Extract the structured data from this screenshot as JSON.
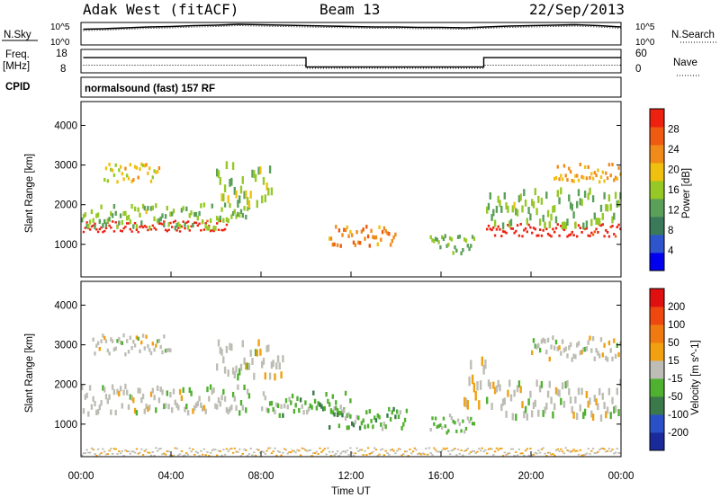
{
  "header": {
    "station": "Adak West (fitACF)",
    "beam": "Beam 13",
    "date": "22/Sep/2013"
  },
  "noise_panel": {
    "left_label": "N.Sky",
    "right_label": "N.Search",
    "left_ticks": [
      "10^5",
      "10^0"
    ],
    "right_ticks": [
      "10^5",
      "10^0"
    ]
  },
  "freq_panel": {
    "left_label_top": "Freq.",
    "left_label_unit": "[MHz]",
    "left_ticks": [
      "18",
      "8"
    ],
    "right_label": "Nave",
    "right_ticks": [
      "60",
      "0"
    ]
  },
  "cpid": {
    "label": "CPID",
    "text": "normalsound (fast) 157 RF"
  },
  "colors": {
    "power_scale": [
      "#0000ee",
      "#2e55cc",
      "#3a7a5a",
      "#5aa05a",
      "#96c826",
      "#f0c010",
      "#f08a18",
      "#ee5a10",
      "#ee2010"
    ],
    "velocity_scale": [
      "#1a2a9a",
      "#2a50c8",
      "#3a7a4a",
      "#50b030",
      "#bdbdb5",
      "#f0a010",
      "#f07a10",
      "#ee4810",
      "#e01010"
    ]
  },
  "chart_data": [
    {
      "type": "line",
      "panel": "noise",
      "series": [
        {
          "name": "N.Sky",
          "x": [
            0.1,
            1,
            2,
            3,
            4,
            5,
            6,
            7,
            8,
            9,
            10,
            11,
            12,
            13,
            14,
            15,
            16,
            17,
            18,
            19,
            20,
            21,
            22,
            23,
            24
          ],
          "y": [
            3.5,
            3.6,
            3.8,
            4.0,
            4.1,
            4.3,
            4.4,
            4.6,
            4.5,
            4.4,
            4.3,
            4.2,
            4.1,
            4.0,
            4.0,
            3.9,
            3.9,
            3.8,
            4.0,
            4.2,
            4.3,
            4.4,
            4.5,
            4.3,
            4.0
          ]
        },
        {
          "name": "N.Search",
          "x": [
            0.1,
            1,
            2,
            3,
            4,
            5,
            6,
            7,
            8,
            9,
            10,
            11,
            12,
            13,
            14,
            15,
            16,
            17,
            18,
            19,
            20,
            21,
            22,
            23,
            24
          ],
          "y": [
            3.2,
            3.3,
            3.5,
            3.7,
            3.8,
            4.0,
            4.1,
            4.3,
            4.2,
            4.1,
            4.0,
            3.9,
            3.8,
            3.7,
            3.7,
            3.6,
            3.6,
            3.5,
            3.7,
            3.9,
            4.0,
            4.1,
            4.2,
            4.0,
            3.7
          ]
        }
      ],
      "xlim": [
        0,
        24
      ],
      "ylim": [
        0,
        5
      ],
      "yscale": "log"
    },
    {
      "type": "line",
      "panel": "frequency",
      "series": [
        {
          "name": "Freq.",
          "x": [
            0.1,
            10.0,
            10.0,
            17.9,
            17.9,
            24
          ],
          "y": [
            14.5,
            14.5,
            10.5,
            10.5,
            14.5,
            14.5
          ]
        },
        {
          "name": "Nave",
          "x": [
            0.1,
            10.0,
            10.0,
            17.9,
            17.9,
            24
          ],
          "y": [
            8,
            8,
            0,
            0,
            8,
            8
          ]
        }
      ],
      "xlim": [
        0,
        24
      ],
      "ylim": [
        8,
        18
      ],
      "y2lim": [
        0,
        60
      ]
    },
    {
      "type": "heatmap",
      "panel": "power",
      "title": "",
      "xlabel": "",
      "ylabel": "Slant Range [km]",
      "xlim": [
        0,
        24
      ],
      "ylim": [
        180,
        4600
      ],
      "x_ticks": [
        "00:00",
        "04:00",
        "08:00",
        "12:00",
        "16:00",
        "20:00",
        "00:00"
      ],
      "y_ticks": [
        1000,
        2000,
        3000,
        4000
      ],
      "colorbar": {
        "label": "Power [dB]",
        "unit": "dB",
        "range": [
          0,
          30
        ],
        "ticks": [
          "4",
          "8",
          "12",
          "16",
          "20",
          "24",
          "28"
        ]
      },
      "regions": [
        {
          "t0": 0,
          "t1": 6.5,
          "range_center": 1450,
          "range_width": 280,
          "value": 29
        },
        {
          "t0": 0,
          "t1": 7.5,
          "range_center": 1700,
          "range_width": 600,
          "value": 14
        },
        {
          "t0": 1,
          "t1": 3.5,
          "range_center": 2800,
          "range_width": 450,
          "value": 18
        },
        {
          "t0": 6,
          "t1": 8.5,
          "range_center": 2500,
          "range_width": 1000,
          "value": 15
        },
        {
          "t0": 11,
          "t1": 14,
          "range_center": 1200,
          "range_width": 500,
          "value": 22
        },
        {
          "t0": 15.5,
          "t1": 17.5,
          "range_center": 1000,
          "range_width": 500,
          "value": 14
        },
        {
          "t0": 18,
          "t1": 24,
          "range_center": 1350,
          "range_width": 320,
          "value": 29
        },
        {
          "t0": 18,
          "t1": 24,
          "range_center": 1900,
          "range_width": 900,
          "value": 14
        },
        {
          "t0": 21,
          "t1": 24,
          "range_center": 2800,
          "range_width": 450,
          "value": 20
        }
      ]
    },
    {
      "type": "heatmap",
      "panel": "velocity",
      "title": "",
      "xlabel": "Time UT",
      "ylabel": "Slant Range [km]",
      "xlim": [
        0,
        24
      ],
      "ylim": [
        180,
        4600
      ],
      "x_ticks": [
        "00:00",
        "04:00",
        "08:00",
        "12:00",
        "16:00",
        "20:00",
        "00:00"
      ],
      "y_ticks": [
        1000,
        2000,
        3000,
        4000
      ],
      "colorbar": {
        "label": "Velocity [m s^-1]",
        "unit": "m/s",
        "range": [
          -250,
          250
        ],
        "ticks": [
          "-200",
          "-100",
          "-50",
          "-15",
          "15",
          "50",
          "100",
          "200"
        ]
      },
      "regions": [
        {
          "t0": 0,
          "t1": 7.5,
          "range_center": 1600,
          "range_width": 700,
          "value": 0
        },
        {
          "t0": 0.5,
          "t1": 4,
          "range_center": 3000,
          "range_width": 500,
          "value": 0
        },
        {
          "t0": 6,
          "t1": 9,
          "range_center": 2600,
          "range_width": 900,
          "value": 0
        },
        {
          "t0": 8,
          "t1": 12,
          "range_center": 1500,
          "range_width": 600,
          "value": -45
        },
        {
          "t0": 11,
          "t1": 14.5,
          "range_center": 1150,
          "range_width": 550,
          "value": -55
        },
        {
          "t0": 15.5,
          "t1": 17.5,
          "range_center": 1000,
          "range_width": 450,
          "value": -40
        },
        {
          "t0": 17,
          "t1": 18,
          "range_center": 2000,
          "range_width": 1200,
          "value": 25
        },
        {
          "t0": 18,
          "t1": 24,
          "range_center": 1600,
          "range_width": 900,
          "value": 0
        },
        {
          "t0": 20,
          "t1": 24,
          "range_center": 2900,
          "range_width": 600,
          "value": 0
        },
        {
          "t0": 0,
          "t1": 24,
          "range_center": 300,
          "range_width": 200,
          "value": 20
        }
      ]
    }
  ]
}
